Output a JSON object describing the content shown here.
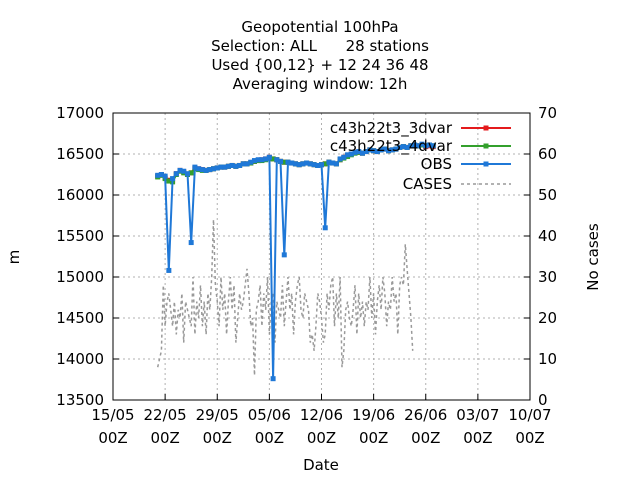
{
  "chart_data": {
    "type": "line",
    "title_lines": [
      "Geopotential 100hPa",
      "Selection: ALL      28 stations",
      "Used {00,12} + 12 24 36 48",
      "Averaging window: 12h"
    ],
    "xlabel": "Date",
    "ylabel": "m",
    "y2label": "No cases",
    "ylim": [
      13500,
      17000
    ],
    "y2lim": [
      0,
      70
    ],
    "yticks": [
      13500,
      14000,
      14500,
      15000,
      15500,
      16000,
      16500,
      17000
    ],
    "y2ticks": [
      0,
      10,
      20,
      30,
      40,
      50,
      60,
      70
    ],
    "xlim": [
      "2025-05-15",
      "2025-07-10"
    ],
    "xticks": [
      {
        "date": "2025-05-15",
        "line1": "15/05",
        "line2": "00Z"
      },
      {
        "date": "2025-05-22",
        "line1": "22/05",
        "line2": "00Z"
      },
      {
        "date": "2025-05-29",
        "line1": "29/05",
        "line2": "00Z"
      },
      {
        "date": "2025-06-05",
        "line1": "05/06",
        "line2": "00Z"
      },
      {
        "date": "2025-06-12",
        "line1": "12/06",
        "line2": "00Z"
      },
      {
        "date": "2025-06-19",
        "line1": "19/06",
        "line2": "00Z"
      },
      {
        "date": "2025-06-26",
        "line1": "26/06",
        "line2": "00Z"
      },
      {
        "date": "2025-07-03",
        "line1": "03/07",
        "line2": "00Z"
      },
      {
        "date": "2025-07-10",
        "line1": "10/07",
        "line2": "00Z"
      }
    ],
    "grid": true,
    "legend_position": "top-right",
    "series": [
      {
        "name": "c43h22t3_3dvar",
        "color": "#e41a1c",
        "axis": "left",
        "style": "line-points",
        "x_start": "2025-05-21T00:00",
        "x_step_hours": 12,
        "values": [
          16230,
          16250,
          16210,
          16180,
          16170,
          16260,
          16300,
          16280,
          16250,
          16270,
          16330,
          16320,
          16310,
          16300,
          16310,
          16320,
          16330,
          16340,
          16340,
          16350,
          16360,
          16350,
          16360,
          16380,
          16380,
          16390,
          16410,
          16420,
          16430,
          16440,
          16460,
          16440,
          16430,
          16410,
          16400,
          16400,
          16390,
          16380,
          16370,
          16380,
          16390,
          16380,
          16370,
          16360,
          16370,
          16380,
          16400,
          16390,
          16380,
          16430,
          16460,
          16480,
          16500,
          16520,
          16520,
          16510,
          16530,
          16550,
          16540,
          16530,
          16550,
          16560,
          16540,
          16550,
          16560,
          16580,
          16590,
          16580,
          16600,
          16610,
          16600,
          16610,
          16590,
          16600,
          16590
        ]
      },
      {
        "name": "c43h22t3_4dvar",
        "color": "#33a02c",
        "axis": "left",
        "style": "line-points",
        "x_start": "2025-05-21T00:00",
        "x_step_hours": 12,
        "values": [
          16220,
          16240,
          16200,
          16170,
          16160,
          16250,
          16290,
          16270,
          16250,
          16270,
          16320,
          16310,
          16300,
          16300,
          16310,
          16320,
          16330,
          16340,
          16340,
          16350,
          16360,
          16350,
          16360,
          16380,
          16380,
          16390,
          16410,
          16420,
          16420,
          16430,
          16450,
          16440,
          16430,
          16410,
          16400,
          16400,
          16390,
          16380,
          16370,
          16380,
          16390,
          16380,
          16370,
          16360,
          16370,
          16380,
          16400,
          16390,
          16380,
          16430,
          16450,
          16470,
          16490,
          16510,
          16520,
          16510,
          16530,
          16550,
          16540,
          16530,
          16550,
          16560,
          16540,
          16550,
          16560,
          16580,
          16590,
          16580,
          16600,
          16610,
          16600,
          16610,
          16600,
          16610,
          16600
        ]
      },
      {
        "name": "OBS",
        "color": "#1f78d7",
        "axis": "left",
        "style": "line-points",
        "x_start": "2025-05-21T00:00",
        "x_step_hours": 12,
        "values": [
          16240,
          16250,
          16230,
          15080,
          16200,
          16260,
          16300,
          16290,
          16260,
          15420,
          16340,
          16320,
          16310,
          16300,
          16310,
          16320,
          16330,
          16340,
          16340,
          16350,
          16360,
          16350,
          16360,
          16380,
          16380,
          16400,
          16420,
          16430,
          16430,
          16440,
          16460,
          13760,
          16430,
          16410,
          15270,
          16400,
          16390,
          16380,
          16370,
          16380,
          16390,
          16380,
          16370,
          16360,
          16370,
          15600,
          16400,
          16390,
          16380,
          16440,
          16460,
          16490,
          16500,
          16520,
          16530,
          16510,
          16530,
          16550,
          16540,
          16530,
          16550,
          16560,
          16540,
          16550,
          16560,
          16580,
          16590,
          16580,
          16600,
          16610,
          16600,
          16620,
          16600,
          16610,
          16600
        ]
      },
      {
        "name": "CASES",
        "color": "#999999",
        "axis": "right",
        "style": "dashed",
        "x_start": "2025-05-21T00:00",
        "x_step_hours": 6,
        "values": [
          8,
          10,
          12,
          28,
          18,
          24,
          26,
          22,
          18,
          24,
          16,
          22,
          20,
          26,
          14,
          24,
          22,
          20,
          18,
          30,
          16,
          24,
          20,
          28,
          18,
          24,
          16,
          26,
          22,
          30,
          44,
          28,
          24,
          18,
          30,
          22,
          26,
          16,
          24,
          30,
          22,
          28,
          14,
          20,
          26,
          22,
          24,
          28,
          32,
          26,
          18,
          20,
          6,
          22,
          24,
          28,
          18,
          26,
          22,
          30,
          16,
          24,
          26,
          14,
          24,
          22,
          20,
          28,
          18,
          24,
          30,
          22,
          26,
          16,
          24,
          28,
          30,
          22,
          20,
          26,
          24,
          22,
          14,
          16,
          12,
          18,
          26,
          24,
          20,
          14,
          16,
          26,
          22,
          28,
          30,
          18,
          26,
          20,
          30,
          8,
          12,
          22,
          24,
          20,
          18,
          22,
          28,
          16,
          26,
          20,
          24,
          18,
          24,
          22,
          30,
          20,
          26,
          16,
          24,
          28,
          22,
          30,
          26,
          18,
          24,
          22,
          30,
          24,
          26,
          16,
          28,
          30,
          28,
          38,
          32,
          26,
          20,
          12
        ]
      }
    ]
  }
}
